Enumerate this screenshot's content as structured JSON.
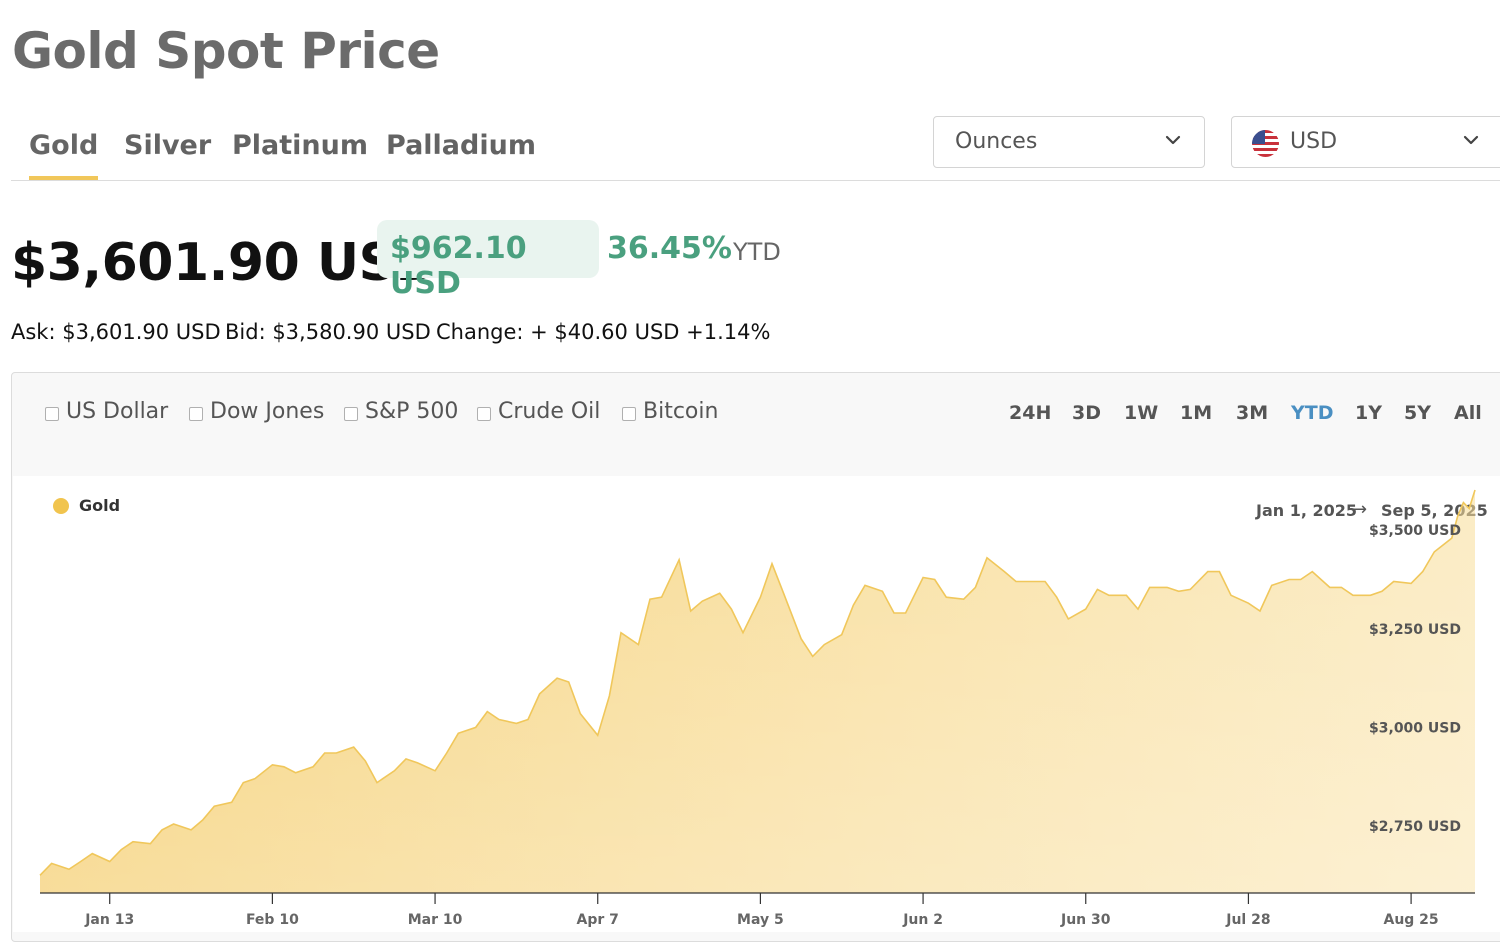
{
  "page_title": "Gold Spot Price",
  "metal_tabs": [
    {
      "label": "Gold",
      "active": true
    },
    {
      "label": "Silver",
      "active": false
    },
    {
      "label": "Platinum",
      "active": false
    },
    {
      "label": "Palladium",
      "active": false
    }
  ],
  "unit_select": {
    "value": "Ounces",
    "icon": "chevron-down-icon"
  },
  "currency_select": {
    "value": "USD",
    "icon": "us-flag-icon"
  },
  "price": {
    "value": "$3,601.90 USD",
    "ytd_change": "$962.10 USD",
    "ytd_percent": "36.45%",
    "ytd_label": "YTD",
    "ask": "Ask: $3,601.90 USD",
    "bid": "Bid: $3,580.90 USD",
    "change": "Change: + $40.60 USD +1.14%"
  },
  "compare": [
    "US Dollar",
    "Dow Jones",
    "S&P 500",
    "Crude Oil",
    "Bitcoin"
  ],
  "ranges": [
    {
      "label": "24H",
      "active": false
    },
    {
      "label": "3D",
      "active": false
    },
    {
      "label": "1W",
      "active": false
    },
    {
      "label": "1M",
      "active": false
    },
    {
      "label": "3M",
      "active": false
    },
    {
      "label": "YTD",
      "active": true
    },
    {
      "label": "1Y",
      "active": false
    },
    {
      "label": "5Y",
      "active": false
    },
    {
      "label": "All",
      "active": false
    }
  ],
  "date_range": {
    "start": "Jan 1, 2025",
    "end": "Sep 5, 2025"
  },
  "colors": {
    "accent": "#f1c75a",
    "positive": "#4aa07f",
    "active_range": "#4a8fc2",
    "area": "#f5cf72"
  },
  "chart_data": {
    "type": "area",
    "title": "",
    "legend": [
      "Gold"
    ],
    "legend_position": "top-left",
    "y_axis_position": "right",
    "ylim": [
      2580,
      3640
    ],
    "y_ticks": [
      {
        "value": 2750,
        "label": "$2,750 USD"
      },
      {
        "value": 3000,
        "label": "$3,000 USD"
      },
      {
        "value": 3250,
        "label": "$3,250 USD"
      },
      {
        "value": 3500,
        "label": "$3,500 USD"
      }
    ],
    "x_ticks": [
      "Jan 13",
      "Feb 10",
      "Mar 10",
      "Apr 7",
      "May 5",
      "Jun 2",
      "Jun 30",
      "Jul 28",
      "Aug 25"
    ],
    "series": [
      {
        "name": "Gold",
        "points": [
          [
            "2025-01-01",
            2625
          ],
          [
            "2025-01-03",
            2655
          ],
          [
            "2025-01-06",
            2640
          ],
          [
            "2025-01-08",
            2660
          ],
          [
            "2025-01-10",
            2680
          ],
          [
            "2025-01-13",
            2660
          ],
          [
            "2025-01-15",
            2690
          ],
          [
            "2025-01-17",
            2710
          ],
          [
            "2025-01-20",
            2705
          ],
          [
            "2025-01-22",
            2740
          ],
          [
            "2025-01-24",
            2755
          ],
          [
            "2025-01-27",
            2740
          ],
          [
            "2025-01-29",
            2765
          ],
          [
            "2025-01-31",
            2800
          ],
          [
            "2025-02-03",
            2810
          ],
          [
            "2025-02-05",
            2860
          ],
          [
            "2025-02-07",
            2870
          ],
          [
            "2025-02-10",
            2905
          ],
          [
            "2025-02-12",
            2900
          ],
          [
            "2025-02-14",
            2885
          ],
          [
            "2025-02-17",
            2900
          ],
          [
            "2025-02-19",
            2935
          ],
          [
            "2025-02-21",
            2935
          ],
          [
            "2025-02-24",
            2950
          ],
          [
            "2025-02-26",
            2915
          ],
          [
            "2025-02-28",
            2860
          ],
          [
            "2025-03-03",
            2890
          ],
          [
            "2025-03-05",
            2920
          ],
          [
            "2025-03-07",
            2910
          ],
          [
            "2025-03-10",
            2890
          ],
          [
            "2025-03-12",
            2935
          ],
          [
            "2025-03-14",
            2985
          ],
          [
            "2025-03-17",
            3000
          ],
          [
            "2025-03-19",
            3040
          ],
          [
            "2025-03-21",
            3020
          ],
          [
            "2025-03-24",
            3010
          ],
          [
            "2025-03-26",
            3020
          ],
          [
            "2025-03-28",
            3085
          ],
          [
            "2025-03-31",
            3125
          ],
          [
            "2025-04-02",
            3115
          ],
          [
            "2025-04-04",
            3035
          ],
          [
            "2025-04-07",
            2980
          ],
          [
            "2025-04-09",
            3080
          ],
          [
            "2025-04-11",
            3240
          ],
          [
            "2025-04-14",
            3210
          ],
          [
            "2025-04-16",
            3325
          ],
          [
            "2025-04-18",
            3330
          ],
          [
            "2025-04-21",
            3425
          ],
          [
            "2025-04-23",
            3295
          ],
          [
            "2025-04-25",
            3320
          ],
          [
            "2025-04-28",
            3340
          ],
          [
            "2025-04-30",
            3300
          ],
          [
            "2025-05-02",
            3240
          ],
          [
            "2025-05-05",
            3330
          ],
          [
            "2025-05-07",
            3415
          ],
          [
            "2025-05-09",
            3340
          ],
          [
            "2025-05-12",
            3225
          ],
          [
            "2025-05-14",
            3180
          ],
          [
            "2025-05-16",
            3210
          ],
          [
            "2025-05-19",
            3235
          ],
          [
            "2025-05-21",
            3310
          ],
          [
            "2025-05-23",
            3360
          ],
          [
            "2025-05-26",
            3345
          ],
          [
            "2025-05-28",
            3290
          ],
          [
            "2025-05-30",
            3290
          ],
          [
            "2025-06-02",
            3380
          ],
          [
            "2025-06-04",
            3375
          ],
          [
            "2025-06-06",
            3330
          ],
          [
            "2025-06-09",
            3325
          ],
          [
            "2025-06-11",
            3355
          ],
          [
            "2025-06-13",
            3430
          ],
          [
            "2025-06-16",
            3395
          ],
          [
            "2025-06-18",
            3370
          ],
          [
            "2025-06-20",
            3370
          ],
          [
            "2025-06-23",
            3370
          ],
          [
            "2025-06-25",
            3330
          ],
          [
            "2025-06-27",
            3275
          ],
          [
            "2025-06-30",
            3300
          ],
          [
            "2025-07-02",
            3350
          ],
          [
            "2025-07-04",
            3335
          ],
          [
            "2025-07-07",
            3335
          ],
          [
            "2025-07-09",
            3300
          ],
          [
            "2025-07-11",
            3355
          ],
          [
            "2025-07-14",
            3355
          ],
          [
            "2025-07-16",
            3345
          ],
          [
            "2025-07-18",
            3350
          ],
          [
            "2025-07-21",
            3395
          ],
          [
            "2025-07-23",
            3395
          ],
          [
            "2025-07-25",
            3335
          ],
          [
            "2025-07-28",
            3315
          ],
          [
            "2025-07-30",
            3295
          ],
          [
            "2025-08-01",
            3360
          ],
          [
            "2025-08-04",
            3375
          ],
          [
            "2025-08-06",
            3375
          ],
          [
            "2025-08-08",
            3395
          ],
          [
            "2025-08-11",
            3355
          ],
          [
            "2025-08-13",
            3355
          ],
          [
            "2025-08-15",
            3335
          ],
          [
            "2025-08-18",
            3335
          ],
          [
            "2025-08-20",
            3345
          ],
          [
            "2025-08-22",
            3370
          ],
          [
            "2025-08-25",
            3365
          ],
          [
            "2025-08-27",
            3395
          ],
          [
            "2025-08-29",
            3445
          ],
          [
            "2025-09-01",
            3480
          ],
          [
            "2025-09-02",
            3535
          ],
          [
            "2025-09-03",
            3570
          ],
          [
            "2025-09-04",
            3555
          ],
          [
            "2025-09-05",
            3601.9
          ]
        ]
      }
    ]
  }
}
